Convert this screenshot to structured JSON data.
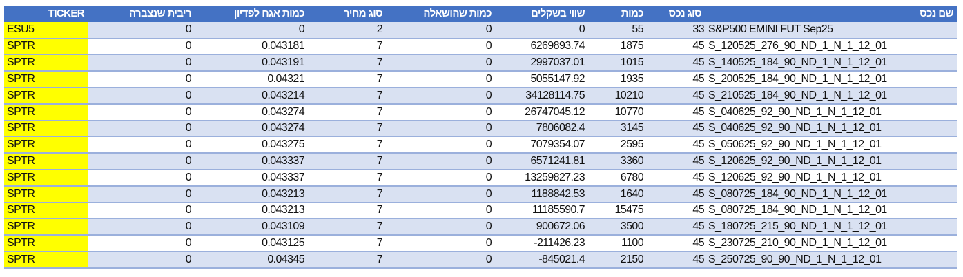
{
  "headers": [
    "TICKER",
    "ריבית שנצברה",
    "כמות אגח לפדיון",
    "סוג מחיר",
    "כמות שהושאלה",
    "שווי בשקלים",
    "כמות",
    "סוג נכס",
    "שם נכס"
  ],
  "colors": {
    "header": "#4472C4",
    "band": "#D9E1F2",
    "ticker_highlight": "#FFFF00"
  },
  "rows": [
    [
      "ESU5",
      "0",
      "0",
      "2",
      "0",
      "0",
      "55",
      "33",
      "S&P500 EMINI FUT  Sep25"
    ],
    [
      "SPTR",
      "0",
      "0.043181",
      "7",
      "0",
      "6269893.74",
      "1875",
      "45",
      "S_120525_276_90_ND_1_N_1_12_01"
    ],
    [
      "SPTR",
      "0",
      "0.043191",
      "7",
      "0",
      "2997037.01",
      "1015",
      "45",
      "S_140525_184_90_ND_1_N_1_12_01"
    ],
    [
      "SPTR",
      "0",
      "0.04321",
      "7",
      "0",
      "5055147.92",
      "1935",
      "45",
      "S_200525_184_90_ND_1_N_1_12_01"
    ],
    [
      "SPTR",
      "0",
      "0.043214",
      "7",
      "0",
      "34128114.75",
      "10210",
      "45",
      "S_210525_184_90_ND_1_N_1_12_01"
    ],
    [
      "SPTR",
      "0",
      "0.043274",
      "7",
      "0",
      "26747045.12",
      "10770",
      "45",
      "S_040625_92_90_ND_1_N_1_12_01"
    ],
    [
      "SPTR",
      "0",
      "0.043274",
      "7",
      "0",
      "7806082.4",
      "3145",
      "45",
      "S_040625_92_90_ND_1_N_1_12_01"
    ],
    [
      "SPTR",
      "0",
      "0.043275",
      "7",
      "0",
      "7079354.07",
      "2595",
      "45",
      "S_050625_92_90_ND_1_N_1_12_01"
    ],
    [
      "SPTR",
      "0",
      "0.043337",
      "7",
      "0",
      "6571241.81",
      "3360",
      "45",
      "S_120625_92_90_ND_1_N_1_12_01"
    ],
    [
      "SPTR",
      "0",
      "0.043337",
      "7",
      "0",
      "13259827.23",
      "6780",
      "45",
      "S_120625_92_90_ND_1_N_1_12_01"
    ],
    [
      "SPTR",
      "0",
      "0.043213",
      "7",
      "0",
      "1188842.53",
      "1640",
      "45",
      "S_080725_184_90_ND_1_N_1_12_01"
    ],
    [
      "SPTR",
      "0",
      "0.043213",
      "7",
      "0",
      "11185590.7",
      "15475",
      "45",
      "S_080725_184_90_ND_1_N_1_12_01"
    ],
    [
      "SPTR",
      "0",
      "0.043109",
      "7",
      "0",
      "900672.06",
      "3500",
      "45",
      "S_180725_215_90_ND_1_N_1_12_01"
    ],
    [
      "SPTR",
      "0",
      "0.043125",
      "7",
      "0",
      "-211426.23",
      "1100",
      "45",
      "S_230725_210_90_ND_1_N_1_12_01"
    ],
    [
      "SPTR",
      "0",
      "0.04345",
      "7",
      "0",
      "-845021.4",
      "2150",
      "45",
      "S_250725_90_90_ND_1_N_1_12_01"
    ]
  ]
}
